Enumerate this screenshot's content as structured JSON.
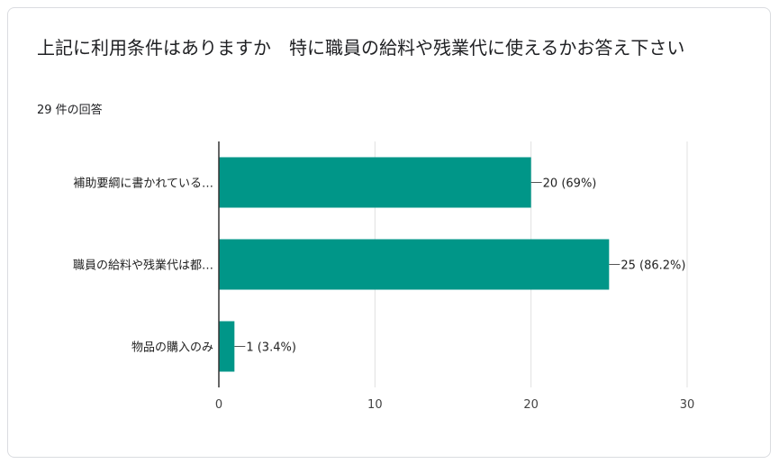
{
  "question": {
    "title": "上記に利用条件はありますか　特に職員の給料や残業代に使えるかお答え下さい",
    "response_count": "29 件の回答"
  },
  "colors": {
    "bar": "#009688",
    "grid": "#e0e0e0",
    "axis": "#333333"
  },
  "chart_data": {
    "type": "bar",
    "orientation": "horizontal",
    "categories": [
      "補助要綱に書かれている…",
      "職員の給料や残業代は都…",
      "物品の購入のみ"
    ],
    "values": [
      20,
      25,
      1
    ],
    "value_labels": [
      "20 (69%)",
      "25 (86.2%)",
      "1 (3.4%)"
    ],
    "xlim": [
      0,
      30
    ],
    "x_ticks": [
      0,
      10,
      20,
      30
    ],
    "grid": true
  }
}
